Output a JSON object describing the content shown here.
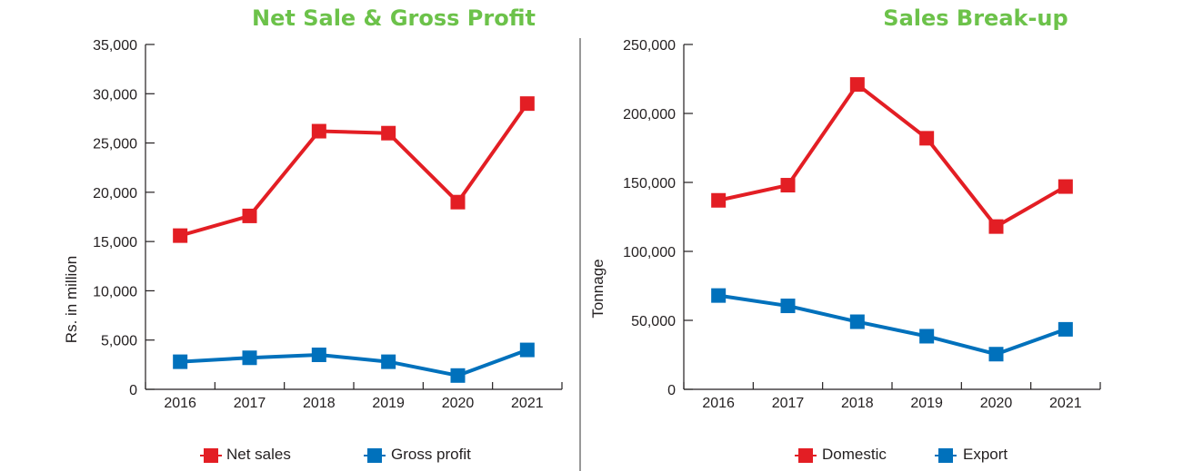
{
  "chart_data": [
    {
      "type": "line",
      "title": "Net Sale & Gross Profit",
      "ylabel": "Rs. in million",
      "xlabel": "",
      "categories": [
        "2016",
        "2017",
        "2018",
        "2019",
        "2020",
        "2021"
      ],
      "ylim": [
        0,
        35000
      ],
      "yticks": [
        0,
        5000,
        10000,
        15000,
        20000,
        25000,
        30000,
        35000
      ],
      "ytick_labels": [
        "0",
        "5,000",
        "10,000",
        "15,000",
        "20,000",
        "25,000",
        "30,000",
        "35,000"
      ],
      "grid": false,
      "legend_position": "bottom",
      "series": [
        {
          "name": "Net sales",
          "color": "#e31e24",
          "values": [
            15600,
            17600,
            26200,
            26000,
            19000,
            29000
          ]
        },
        {
          "name": "Gross profit",
          "color": "#0071bc",
          "values": [
            2800,
            3200,
            3500,
            2800,
            1400,
            4000
          ]
        }
      ]
    },
    {
      "type": "line",
      "title": "Sales Break-up",
      "ylabel": "Tonnage",
      "xlabel": "",
      "categories": [
        "2016",
        "2017",
        "2018",
        "2019",
        "2020",
        "2021"
      ],
      "ylim": [
        0,
        250000
      ],
      "yticks": [
        0,
        50000,
        100000,
        150000,
        200000,
        250000
      ],
      "ytick_labels": [
        "0",
        "50,000",
        "100,000",
        "150,000",
        "200,000",
        "250,000"
      ],
      "grid": false,
      "legend_position": "bottom",
      "series": [
        {
          "name": "Domestic",
          "color": "#e31e24",
          "values": [
            137000,
            148000,
            221000,
            182000,
            118000,
            147000
          ]
        },
        {
          "name": "Export",
          "color": "#0071bc",
          "values": [
            68000,
            60500,
            49000,
            38500,
            25500,
            43500
          ]
        }
      ]
    }
  ]
}
